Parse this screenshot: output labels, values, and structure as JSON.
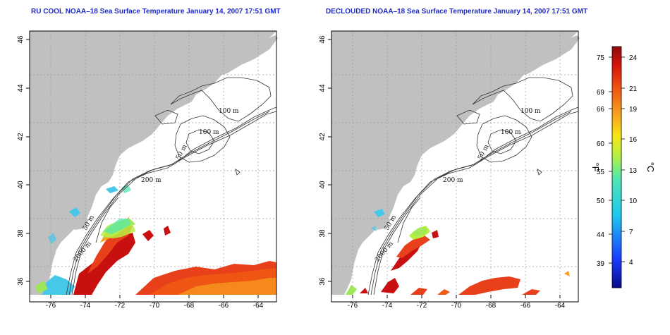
{
  "left_map": {
    "title": "RU COOL NOAA–18 Sea Surface Temperature January 14, 2007 17:51 GMT",
    "contour_labels": [
      "100 m",
      "100 m",
      "50 m",
      "200 m",
      "50 m",
      "2000 m"
    ]
  },
  "right_map": {
    "title": "DECLOUDED NOAA–18 Sea Surface Temperature January 14, 2007 17:51 GMT",
    "contour_labels": [
      "100 m",
      "100 m",
      "50 m",
      "200 m",
      "50 m",
      "2000 m"
    ]
  },
  "axes": {
    "lat_ticks": [
      "36",
      "38",
      "40",
      "42",
      "44",
      "46"
    ],
    "lon_ticks": [
      "-76",
      "-74",
      "-72",
      "-70",
      "-68",
      "-66",
      "-64"
    ]
  },
  "colorbar": {
    "fahrenheit_label": "°F",
    "celsius_label": "°C",
    "fahrenheit_ticks": [
      "75",
      "69",
      "66",
      "60",
      "55",
      "50",
      "44",
      "39"
    ],
    "celsius_ticks": [
      "24",
      "21",
      "19",
      "16",
      "13",
      "10",
      "7",
      "4"
    ]
  },
  "colors": {
    "land": "#c0c0c0",
    "ocean": "#ffffff",
    "title": "#1f2bc4",
    "warm": "#e8401a",
    "hot": "#c81010",
    "mid": "#9ee65a",
    "cool": "#46c8e8"
  }
}
